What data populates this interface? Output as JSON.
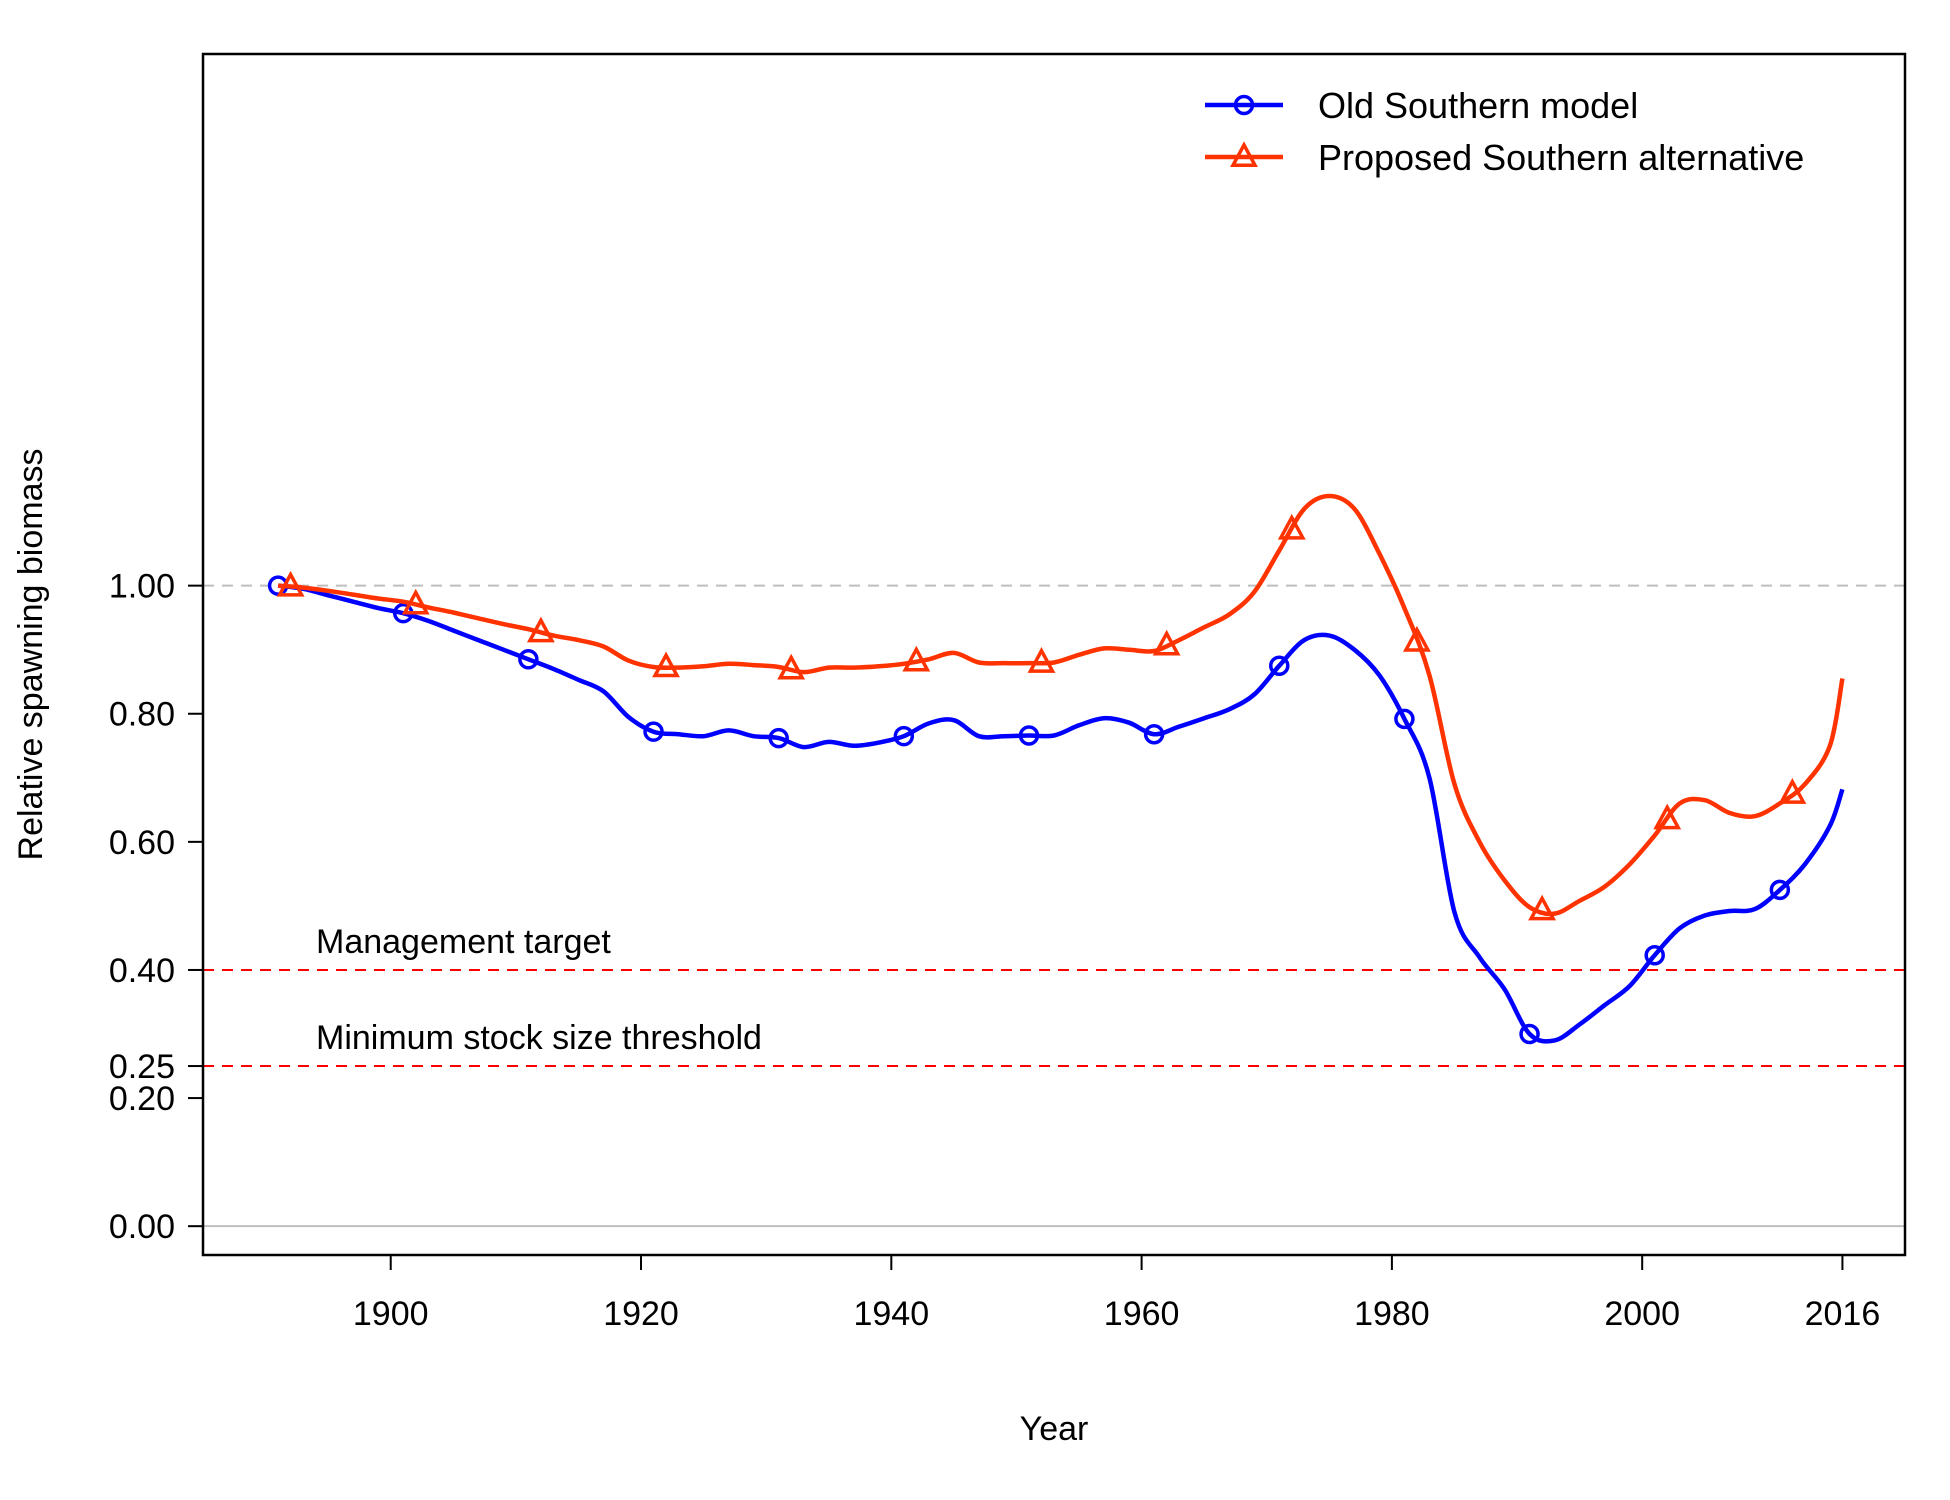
{
  "chart_data": {
    "type": "line",
    "xlabel": "Year",
    "ylabel": "Relative spawning biomass",
    "xlim": [
      1885,
      2021
    ],
    "ylim": [
      -0.045,
      1.83
    ],
    "x_ticks": [
      1900,
      1920,
      1940,
      1960,
      1980,
      2000,
      2016
    ],
    "y_ticks": [
      0.0,
      0.2,
      0.25,
      0.4,
      0.6,
      0.8,
      1.0
    ],
    "y_tick_labels": [
      "0.00",
      "0.20",
      "0.25",
      "0.40",
      "0.60",
      "0.80",
      "1.00"
    ],
    "grid": false,
    "legend_position": "top-right",
    "reference_lines": [
      {
        "y": 1.0,
        "style": "dashed",
        "color": "#bebebe",
        "label": ""
      },
      {
        "y": 0.0,
        "style": "solid",
        "color": "#bebebe",
        "label": ""
      },
      {
        "y": 0.4,
        "style": "dashed",
        "color": "#ff0000",
        "label": "Management target"
      },
      {
        "y": 0.25,
        "style": "dashed",
        "color": "#ff0000",
        "label": "Minimum stock size threshold"
      }
    ],
    "series": [
      {
        "name": "Old Southern model",
        "color": "#0000ff",
        "marker": "circle",
        "marker_x": [
          1891,
          1901,
          1911,
          1921,
          1931,
          1941,
          1951,
          1961,
          1971,
          1981,
          1991,
          2001,
          2011
        ],
        "x": [
          1891,
          1893,
          1895,
          1897,
          1899,
          1901,
          1903,
          1905,
          1907,
          1909,
          1911,
          1913,
          1915,
          1917,
          1919,
          1921,
          1923,
          1925,
          1927,
          1929,
          1931,
          1933,
          1935,
          1937,
          1939,
          1941,
          1943,
          1945,
          1947,
          1949,
          1951,
          1953,
          1955,
          1957,
          1959,
          1961,
          1963,
          1965,
          1967,
          1969,
          1971,
          1973,
          1975,
          1977,
          1979,
          1981,
          1983,
          1985,
          1987,
          1989,
          1991,
          1993,
          1995,
          1997,
          1999,
          2001,
          2003,
          2005,
          2007,
          2009,
          2011,
          2013,
          2015,
          2016
        ],
        "y": [
          1.0,
          0.995,
          0.985,
          0.975,
          0.965,
          0.957,
          0.945,
          0.93,
          0.915,
          0.9,
          0.885,
          0.87,
          0.853,
          0.835,
          0.795,
          0.772,
          0.768,
          0.765,
          0.774,
          0.765,
          0.762,
          0.748,
          0.756,
          0.75,
          0.755,
          0.765,
          0.785,
          0.79,
          0.765,
          0.765,
          0.766,
          0.766,
          0.782,
          0.793,
          0.786,
          0.768,
          0.78,
          0.793,
          0.807,
          0.83,
          0.875,
          0.915,
          0.922,
          0.9,
          0.86,
          0.792,
          0.7,
          0.49,
          0.42,
          0.37,
          0.3,
          0.29,
          0.315,
          0.345,
          0.375,
          0.423,
          0.465,
          0.485,
          0.492,
          0.495,
          0.525,
          0.565,
          0.625,
          0.682
        ]
      },
      {
        "name": "Proposed Southern alternative",
        "color": "#ff3300",
        "marker": "triangle",
        "marker_x": [
          1892,
          1902,
          1912,
          1922,
          1932,
          1942,
          1952,
          1962,
          1972,
          1982,
          1992,
          2002,
          2012
        ],
        "x": [
          1891,
          1893,
          1895,
          1897,
          1899,
          1901,
          1903,
          1905,
          1907,
          1909,
          1911,
          1913,
          1915,
          1917,
          1919,
          1921,
          1923,
          1925,
          1927,
          1929,
          1931,
          1933,
          1935,
          1937,
          1939,
          1941,
          1943,
          1945,
          1947,
          1949,
          1951,
          1953,
          1955,
          1957,
          1959,
          1961,
          1963,
          1965,
          1967,
          1969,
          1971,
          1973,
          1975,
          1977,
          1979,
          1981,
          1983,
          1985,
          1987,
          1989,
          1991,
          1993,
          1995,
          1997,
          1999,
          2001,
          2003,
          2005,
          2007,
          2009,
          2011,
          2013,
          2015,
          2016
        ],
        "y": [
          1.0,
          0.997,
          0.992,
          0.986,
          0.98,
          0.975,
          0.966,
          0.958,
          0.949,
          0.94,
          0.932,
          0.922,
          0.915,
          0.905,
          0.883,
          0.873,
          0.872,
          0.874,
          0.878,
          0.876,
          0.873,
          0.865,
          0.872,
          0.872,
          0.874,
          0.878,
          0.885,
          0.895,
          0.88,
          0.879,
          0.879,
          0.88,
          0.892,
          0.902,
          0.9,
          0.898,
          0.915,
          0.935,
          0.955,
          0.99,
          1.055,
          1.12,
          1.14,
          1.12,
          1.05,
          0.965,
          0.86,
          0.69,
          0.6,
          0.54,
          0.498,
          0.488,
          0.508,
          0.53,
          0.565,
          0.61,
          0.66,
          0.665,
          0.645,
          0.64,
          0.66,
          0.69,
          0.75,
          0.855
        ]
      }
    ]
  }
}
